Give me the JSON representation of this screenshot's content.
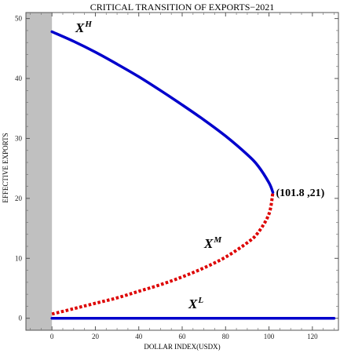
{
  "chart_data": {
    "type": "line",
    "title": "CRITICAL TRANSITION OF EXPORTS−2021",
    "xlabel": "DOLLAR INDEX(USDX)",
    "ylabel": "EFFECTIVE EXPORTS",
    "xlim": [
      -12,
      132
    ],
    "ylim": [
      -2,
      51
    ],
    "x_ticks": [
      0,
      20,
      40,
      60,
      80,
      100,
      120
    ],
    "y_ticks": [
      0,
      10,
      20,
      30,
      40,
      50
    ],
    "grid": false,
    "shaded_region": {
      "x_from": -12,
      "x_to": 0,
      "color": "#c0c0c0"
    },
    "fold_point": {
      "x": 101.8,
      "y": 21,
      "label": "(101.8 ,21)"
    },
    "series": [
      {
        "label_base": "X",
        "label_sup": "H",
        "style": "solid",
        "color": "#0000cc",
        "x": [
          0,
          10,
          20,
          30,
          40,
          50,
          60,
          70,
          80,
          90,
          95,
          100,
          101.8
        ],
        "y": [
          47.8,
          46.2,
          44.4,
          42.4,
          40.3,
          38.0,
          35.6,
          33.1,
          30.4,
          27.3,
          25.4,
          22.6,
          21.0
        ]
      },
      {
        "label_base": "X",
        "label_sup": "M",
        "style": "dotted",
        "color": "#dd0000",
        "x": [
          0,
          10,
          20,
          30,
          40,
          50,
          60,
          70,
          80,
          90,
          95,
          100,
          101.8
        ],
        "y": [
          0.7,
          1.6,
          2.5,
          3.4,
          4.5,
          5.6,
          6.9,
          8.4,
          10.2,
          12.6,
          14.3,
          17.4,
          21.0
        ]
      },
      {
        "label_base": "X",
        "label_sup": "L",
        "style": "solid",
        "color": "#0000cc",
        "x": [
          0,
          130
        ],
        "y": [
          0,
          0
        ]
      }
    ]
  }
}
